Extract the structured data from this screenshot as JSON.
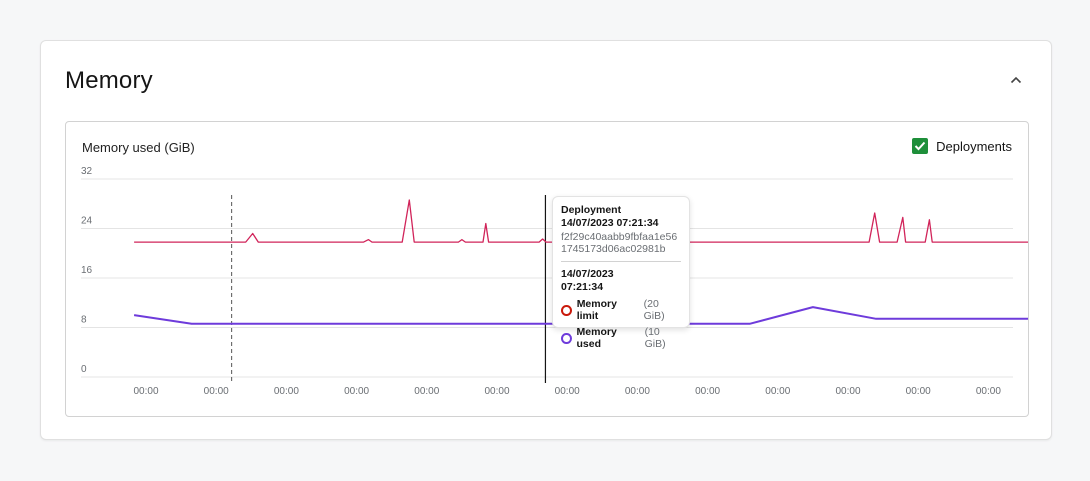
{
  "card": {
    "title": "Memory"
  },
  "chart": {
    "title": "Memory used (GiB)",
    "legend_toggle_label": "Deployments",
    "legend_toggle_checked": true
  },
  "tooltip": {
    "header": "Deployment",
    "deploy_time": "14/07/2023 07:21:34",
    "hash": "f2f29c40aabb9fbfaa1e561745173d06ac02981b",
    "time_line1": "14/07/2023",
    "time_line2": "07:21:34",
    "rows": [
      {
        "name": "Memory limit",
        "value": "(20 GiB)",
        "color": "#c9190b"
      },
      {
        "name": "Memory used",
        "value": "(10 GiB)",
        "color": "#6e3bdb"
      }
    ]
  },
  "colors": {
    "limit": "#d1245a",
    "used": "#6e3bdb",
    "deploy_line": "#151515"
  },
  "chart_data": {
    "type": "line",
    "title": "Memory used (GiB)",
    "ylabel": "",
    "ylim": [
      0,
      32
    ],
    "y_ticks": [
      0,
      8,
      16,
      24,
      32
    ],
    "x_ticks": [
      "00:00",
      "00:00",
      "00:00",
      "00:00",
      "00:00",
      "00:00",
      "00:00",
      "00:00",
      "00:00",
      "00:00",
      "00:00",
      "00:00",
      "00:00"
    ],
    "grid": true,
    "x": [
      0,
      1,
      2,
      3,
      4,
      5,
      6,
      7,
      8,
      9,
      10,
      11,
      12
    ],
    "series": [
      {
        "name": "Memory limit",
        "points": [
          [
            -0.17,
            21.8
          ],
          [
            1.42,
            21.8
          ],
          [
            1.52,
            23.2
          ],
          [
            1.6,
            21.8
          ],
          [
            3.1,
            21.8
          ],
          [
            3.17,
            22.2
          ],
          [
            3.22,
            21.8
          ],
          [
            3.65,
            21.8
          ],
          [
            3.75,
            28.6
          ],
          [
            3.82,
            21.8
          ],
          [
            4.45,
            21.8
          ],
          [
            4.5,
            22.2
          ],
          [
            4.55,
            21.8
          ],
          [
            4.8,
            21.8
          ],
          [
            4.84,
            24.8
          ],
          [
            4.88,
            21.8
          ],
          [
            5.6,
            21.8
          ],
          [
            5.65,
            22.3
          ],
          [
            5.7,
            21.8
          ],
          [
            10.3,
            21.8
          ],
          [
            10.38,
            26.5
          ],
          [
            10.45,
            21.8
          ],
          [
            10.7,
            21.8
          ],
          [
            10.78,
            25.8
          ],
          [
            10.82,
            21.8
          ],
          [
            11.1,
            21.8
          ],
          [
            11.16,
            25.4
          ],
          [
            11.2,
            21.8
          ],
          [
            12.8,
            21.8
          ],
          [
            12.88,
            28.2
          ],
          [
            12.95,
            21.8
          ],
          [
            13.3,
            21.8
          ]
        ]
      },
      {
        "name": "Memory used",
        "points": [
          [
            -0.17,
            10
          ],
          [
            0.65,
            8.6
          ],
          [
            8.6,
            8.6
          ],
          [
            9.5,
            11.3
          ],
          [
            10.4,
            9.4
          ],
          [
            12.1,
            9.4
          ],
          [
            12.1,
            9.4
          ],
          [
            13.1,
            9.4
          ],
          [
            13.1,
            0
          ]
        ]
      }
    ],
    "deployments": [
      1.22,
      5.69
    ]
  }
}
